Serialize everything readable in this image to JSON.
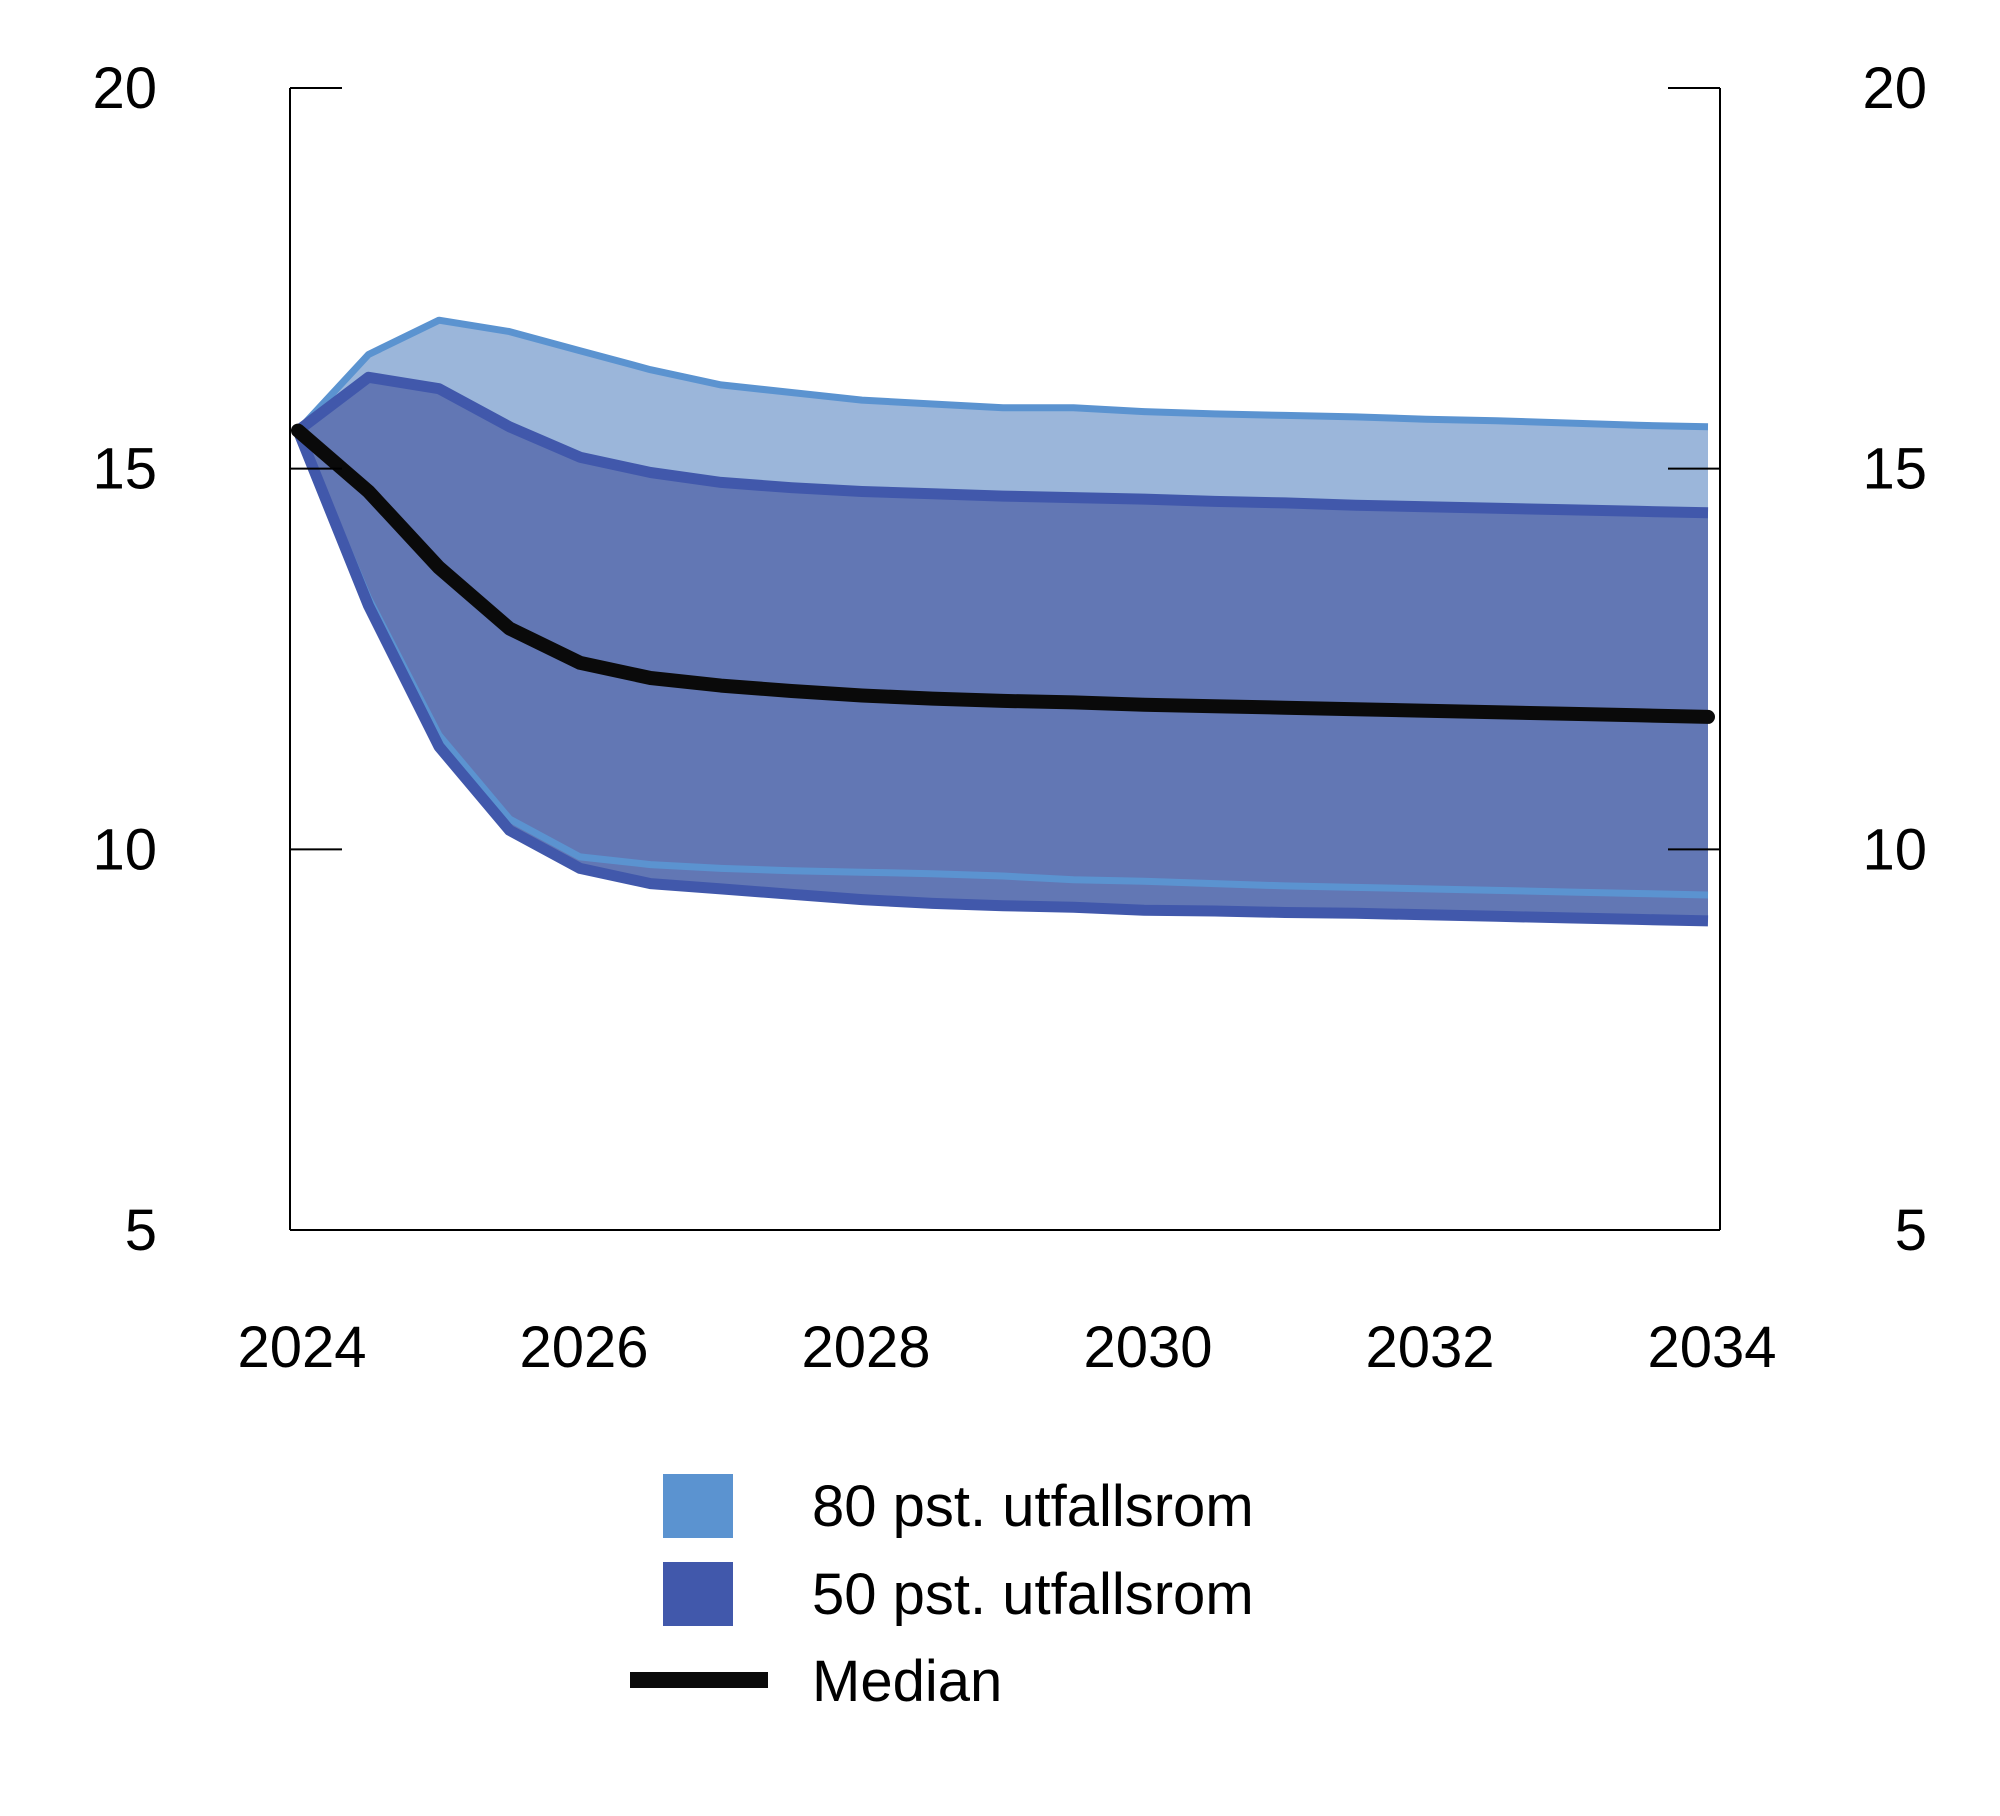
{
  "chart_data": {
    "type": "area",
    "title": "",
    "xlabel": "",
    "ylabel": "",
    "xlim": [
      2024,
      2034
    ],
    "ylim": [
      5,
      20
    ],
    "x_ticks": [
      2024,
      2026,
      2028,
      2030,
      2032,
      2034
    ],
    "x_tick_labels": [
      "2024",
      "2026",
      "2028",
      "2030",
      "2032",
      "2034"
    ],
    "y_ticks": [
      5,
      10,
      15,
      20
    ],
    "y_tick_labels": [
      "5",
      "10",
      "15",
      "20"
    ],
    "grid": false,
    "legend_position": "bottom",
    "x": [
      2024.0,
      2024.5,
      2025.0,
      2025.5,
      2026.0,
      2026.5,
      2027.0,
      2027.5,
      2028.0,
      2028.5,
      2029.0,
      2029.5,
      2030.0,
      2030.5,
      2031.0,
      2031.5,
      2032.0,
      2032.5,
      2033.0,
      2033.5,
      2034.0
    ],
    "series": [
      {
        "name": "80 pst. utfallsrom",
        "kind": "band",
        "upper": [
          15.5,
          16.5,
          16.95,
          16.8,
          16.55,
          16.3,
          16.1,
          16.0,
          15.9,
          15.85,
          15.8,
          15.8,
          15.75,
          15.72,
          15.7,
          15.68,
          15.65,
          15.63,
          15.6,
          15.57,
          15.55
        ],
        "lower": [
          15.5,
          13.3,
          11.5,
          10.4,
          9.9,
          9.8,
          9.75,
          9.72,
          9.7,
          9.68,
          9.65,
          9.6,
          9.58,
          9.55,
          9.52,
          9.5,
          9.48,
          9.46,
          9.44,
          9.42,
          9.4
        ]
      },
      {
        "name": "50 pst. utfallsrom",
        "kind": "band",
        "upper": [
          15.5,
          16.2,
          16.05,
          15.55,
          15.15,
          14.95,
          14.82,
          14.75,
          14.7,
          14.67,
          14.64,
          14.62,
          14.6,
          14.57,
          14.55,
          14.52,
          14.5,
          14.48,
          14.46,
          14.44,
          14.42
        ]
      },
      {
        "name": "Median",
        "kind": "line",
        "values": [
          15.5,
          14.7,
          13.7,
          12.9,
          12.45,
          12.25,
          12.15,
          12.08,
          12.02,
          11.98,
          11.95,
          11.93,
          11.9,
          11.88,
          11.86,
          11.84,
          11.82,
          11.8,
          11.78,
          11.76,
          11.74
        ]
      }
    ],
    "colors": {
      "band80_fill": "#9bb6da",
      "band80_edge": "#5b93d0",
      "band50_fill": "#6277b4",
      "band50_edge": "#4158ab",
      "median": "#0a0a0a",
      "axis": "#000000"
    }
  },
  "legend": {
    "items": [
      {
        "label": "80 pst. utfallsrom",
        "swatch": "box",
        "color": "#5b93d0"
      },
      {
        "label": "50 pst. utfallsrom",
        "swatch": "box",
        "color": "#4158ab"
      },
      {
        "label": "Median",
        "swatch": "line",
        "color": "#0a0a0a"
      }
    ]
  }
}
